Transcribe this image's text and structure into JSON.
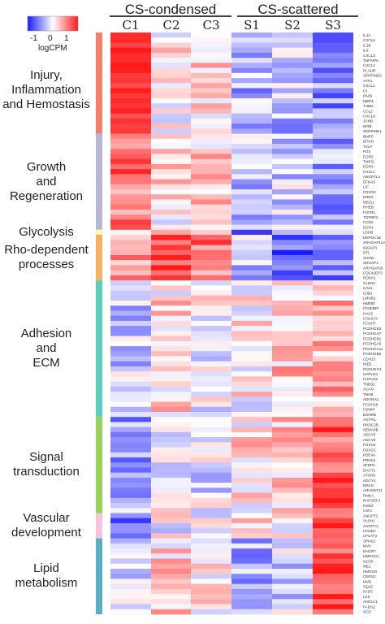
{
  "chart_data": {
    "type": "heatmap",
    "conditions": [
      {
        "name": "CS-condensed",
        "columns": [
          "C1",
          "C2",
          "C3"
        ]
      },
      {
        "name": "CS-scattered",
        "columns": [
          "S1",
          "S2",
          "S3"
        ]
      }
    ],
    "columns": [
      "C1",
      "C2",
      "C3",
      "S1",
      "S2",
      "S3"
    ],
    "legend": {
      "title": "logCPM",
      "ticks": [
        "-1",
        "0",
        "1"
      ],
      "range": [
        -1.5,
        1.5
      ],
      "colors": [
        "#1a1aff",
        "#ffffff",
        "#ff1a1a"
      ]
    },
    "groups": [
      {
        "name": "Injury, Inflammation and Hemostasis",
        "lines": [
          "Injury, Inflammation",
          "and Hemostasis"
        ],
        "color": "#f4806b",
        "genes": [
          "IL1A",
          "CXCL6",
          "IL1B",
          "IL6",
          "CXCL3",
          "TNFAIP6",
          "CXCL2",
          "PLAUR",
          "SERPINB2",
          "ATF3",
          "CXCL1",
          "F3",
          "PAX6",
          "MBP4",
          "THBD",
          "CCL2",
          "CXCL8",
          "JUNB",
          "NFIB",
          "SERPINE1"
        ]
      },
      {
        "name": "Growth and Regeneration",
        "lines": [
          "Growth",
          "and",
          "Regeneration"
        ],
        "color": "#b7b6d6",
        "genes": [
          "BMP5",
          "EPGN",
          "TSLP",
          "FOS",
          "EGR2",
          "TMPO",
          "EGR3",
          "FOSL1",
          "ANGPTL4",
          "EFNA5",
          "LIF",
          "FOXO3",
          "EREG",
          "MEIS1",
          "RHEB",
          "FGFR1",
          "TGFBR3",
          "CCN2",
          "EGR1"
        ]
      },
      {
        "name": "Glycolysis",
        "lines": [
          "Glycolysis"
        ],
        "color": "#fefcb4",
        "genes": [
          "LDHB"
        ]
      },
      {
        "name": "Rho-dependent processes",
        "lines": [
          "Rho-dependent",
          "processes"
        ],
        "color": "#f7b060",
        "genes": [
          "DEPDC1B",
          "ARHGAP11A",
          "IQGAP3",
          "DTL",
          "SHOB",
          "SRGAP1",
          "ARHGAP28",
          "CDC42EP3",
          "ROCK1"
        ]
      },
      {
        "name": "Adhesion and ECM",
        "lines": [
          "Adhesion",
          "and",
          "ECM"
        ],
        "color": "#5bcfbb",
        "genes": [
          "CLDN1",
          "HAS1",
          "GJB2",
          "LMNB1",
          "HMMR",
          "ITGB3BP",
          "HAS2",
          "COL5A3",
          "PCDH7",
          "PCDHGB3",
          "PCDHGA7",
          "PCDHGB1",
          "PCDHGA5",
          "PCDHGA11",
          "PCDHGB5",
          "CDH13",
          "NID2",
          "PCDHGC3",
          "HAPLN3",
          "HAPLN2",
          "THBS2",
          "ACAN",
          "TNXB",
          "ADORA2",
          "PCDH18",
          "CEMIP",
          "EDNRB"
        ]
      },
      {
        "name": "Signal transduction",
        "lines": [
          "Signal",
          "transduction"
        ],
        "color": "#99d25a",
        "genes": [
          "AGTR1",
          "PIK3C2B",
          "SEMA6B",
          "ADCY5",
          "ADCY9",
          "FOXO4",
          "FOXO1",
          "PDE4A",
          "PRKD1",
          "SFRP1",
          "DACT1",
          "ATOH8",
          "ADCY4",
          "NRAS",
          "ARHGEF11",
          "PMKA",
          "RAPGEF1",
          "PJDI2",
          "C3F1"
        ]
      },
      {
        "name": "Vascular development",
        "lines": [
          "Vascular",
          "development"
        ],
        "color": "#f8c2dc",
        "genes": [
          "ANGPT2",
          "VASH1",
          "ANGPT1",
          "HAND2",
          "LPCAT3"
        ]
      },
      {
        "name": "Lipid metabolism",
        "lines": [
          "Lipid",
          "metabolism"
        ],
        "color": "#5aaec4",
        "genes": [
          "SPHK2",
          "MVK",
          "DHCR7",
          "HMGCS1",
          "SCD5",
          "ME1",
          "HMGCR",
          "CERS2",
          "MVD",
          "SQLE",
          "FADS",
          "LSS",
          "AKR1C1",
          "FADS2",
          "SCD"
        ]
      }
    ]
  }
}
